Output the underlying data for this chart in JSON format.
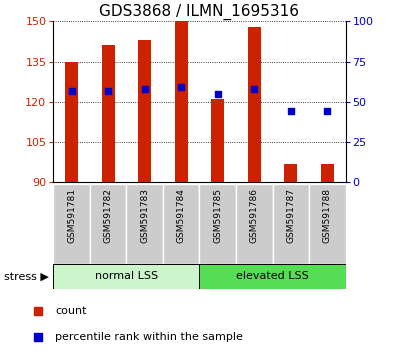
{
  "title": "GDS3868 / ILMN_1695316",
  "categories": [
    "GSM591781",
    "GSM591782",
    "GSM591783",
    "GSM591784",
    "GSM591785",
    "GSM591786",
    "GSM591787",
    "GSM591788"
  ],
  "count_values": [
    135,
    141,
    143,
    150,
    121,
    148,
    97,
    97
  ],
  "percentile_values": [
    57,
    57,
    58,
    59,
    55,
    58,
    44,
    44
  ],
  "ylim_left": [
    90,
    150
  ],
  "ylim_right": [
    0,
    100
  ],
  "yticks_left": [
    90,
    105,
    120,
    135,
    150
  ],
  "yticks_right": [
    0,
    25,
    50,
    75,
    100
  ],
  "bar_color": "#cc2200",
  "dot_color": "#0000cc",
  "group_labels": [
    "normal LSS",
    "elevated LSS"
  ],
  "group_split": 4,
  "group_colors": [
    "#ccf5cc",
    "#55dd55"
  ],
  "stress_label": "stress",
  "legend_entries": [
    "count",
    "percentile rank within the sample"
  ],
  "title_fontsize": 11,
  "axis_color_left": "#cc2200",
  "axis_color_right": "#0000cc",
  "tick_area_color": "#cccccc",
  "bar_width": 0.35,
  "dot_size": 18
}
